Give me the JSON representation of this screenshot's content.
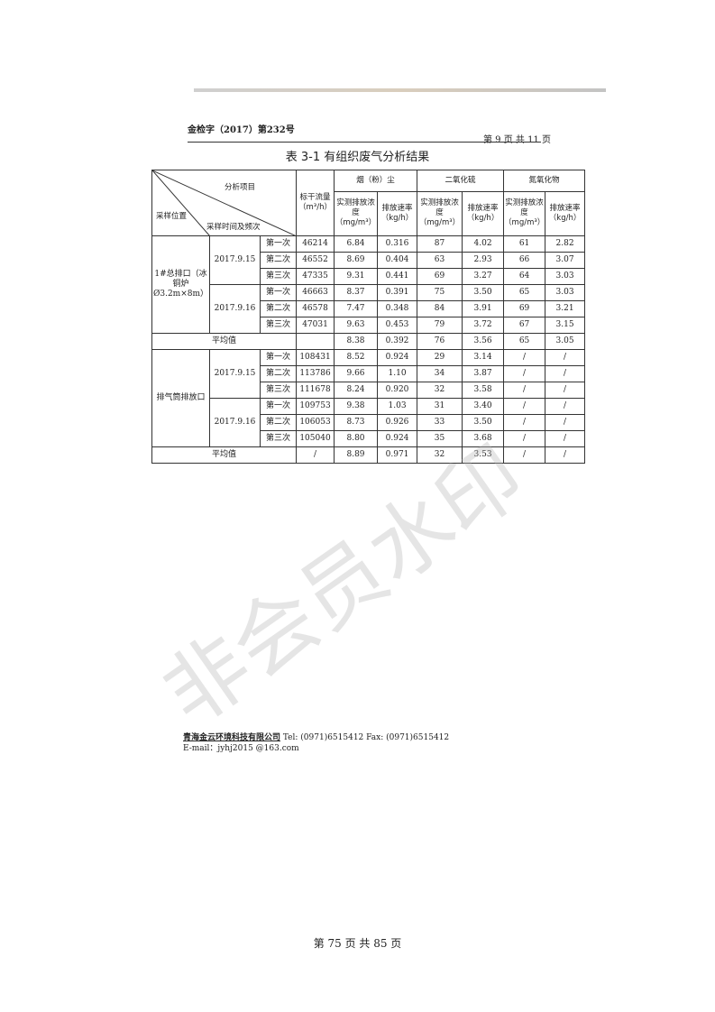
{
  "header": {
    "doc_no": "金检字（2017）第232号",
    "page": "第 9 页 共 11 页"
  },
  "title": "表 3-1 有组织废气分析结果",
  "table": {
    "corner": {
      "item": "分析项目",
      "location": "采样位置",
      "time": "采样时间及频次"
    },
    "flow": "标干流量（m³/h）",
    "groups": [
      "烟（粉）尘",
      "二氧化硫",
      "氮氧化物"
    ],
    "conc": "实测排放浓度（mg/m³）",
    "rate": "排放速率（kg/h）",
    "sites": [
      {
        "name": "1#总排口（冰铜炉Ø3.2m×8m）",
        "days": [
          {
            "date": "2017.9.15",
            "rows": [
              [
                "第一次",
                "46214",
                "6.84",
                "0.316",
                "87",
                "4.02",
                "61",
                "2.82"
              ],
              [
                "第二次",
                "46552",
                "8.69",
                "0.404",
                "63",
                "2.93",
                "66",
                "3.07"
              ],
              [
                "第三次",
                "47335",
                "9.31",
                "0.441",
                "69",
                "3.27",
                "64",
                "3.03"
              ]
            ]
          },
          {
            "date": "2017.9.16",
            "rows": [
              [
                "第一次",
                "46663",
                "8.37",
                "0.391",
                "75",
                "3.50",
                "65",
                "3.03"
              ],
              [
                "第二次",
                "46578",
                "7.47",
                "0.348",
                "84",
                "3.91",
                "69",
                "3.21"
              ],
              [
                "第三次",
                "47031",
                "9.63",
                "0.453",
                "79",
                "3.72",
                "67",
                "3.15"
              ]
            ]
          }
        ],
        "avg": [
          "平均值",
          "",
          "8.38",
          "0.392",
          "76",
          "3.56",
          "65",
          "3.05"
        ]
      },
      {
        "name": "排气筒排放口",
        "days": [
          {
            "date": "2017.9.15",
            "rows": [
              [
                "第一次",
                "108431",
                "8.52",
                "0.924",
                "29",
                "3.14",
                "/",
                "/"
              ],
              [
                "第二次",
                "113786",
                "9.66",
                "1.10",
                "34",
                "3.87",
                "/",
                "/"
              ],
              [
                "第三次",
                "111678",
                "8.24",
                "0.920",
                "32",
                "3.58",
                "/",
                "/"
              ]
            ]
          },
          {
            "date": "2017.9.16",
            "rows": [
              [
                "第一次",
                "109753",
                "9.38",
                "1.03",
                "31",
                "3.40",
                "/",
                "/"
              ],
              [
                "第二次",
                "106053",
                "8.73",
                "0.926",
                "33",
                "3.50",
                "/",
                "/"
              ],
              [
                "第三次",
                "105040",
                "8.80",
                "0.924",
                "35",
                "3.68",
                "/",
                "/"
              ]
            ]
          }
        ],
        "avg": [
          "平均值",
          "/",
          "8.89",
          "0.971",
          "32",
          "3.53",
          "/",
          "/"
        ]
      }
    ]
  },
  "watermark": "非会员水印",
  "footer": {
    "company": "青海金云环境科技有限公司",
    "contact": " Tel:  (0971)6515412   Fax:  (0971)6515412",
    "email": "E-mail：jyhj2015 @163.com"
  },
  "page_number": "第 75 页 共 85 页"
}
